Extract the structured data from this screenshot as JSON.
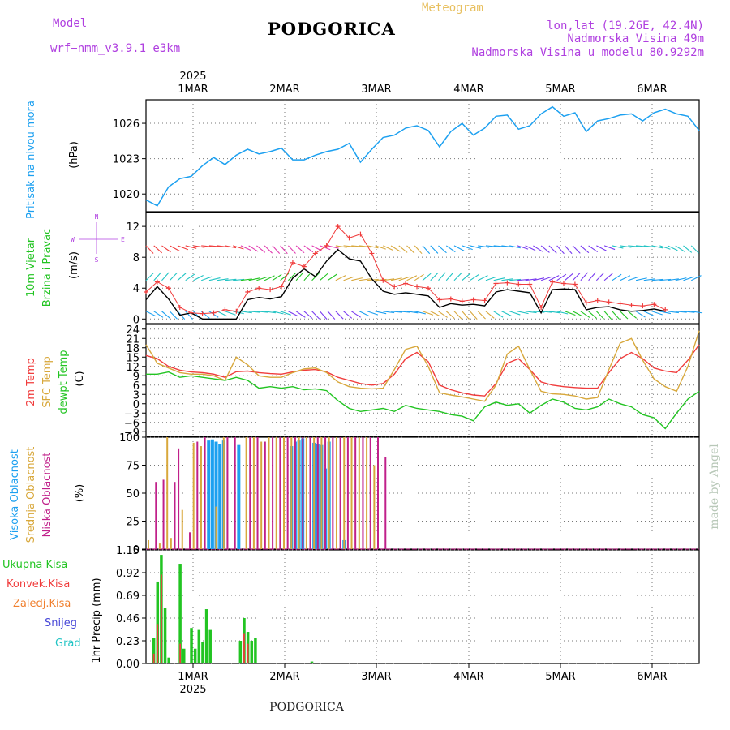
{
  "header": {
    "model_label": "Model",
    "model_name": "wrf−nmm_v3.9.1  e3km",
    "title": "PODGORICA",
    "subtitle": "Meteogram",
    "coords": "lon,lat (19.26E, 42.4N)",
    "elevation": "Nadmorska Visina 49m",
    "model_elevation": "Nadmorska Visina u modelu 80.9292m",
    "footer": "PODGORICA",
    "watermark": "made by Angel"
  },
  "colors": {
    "pressure": "#1ca0f0",
    "wind_speed": "#000000",
    "wind_gust": "#f03c3c",
    "temp2m": "#f03c3c",
    "sfc_temp": "#d8a83c",
    "dewpoint": "#22c422",
    "cloud_high": "#1ca0f0",
    "cloud_mid": "#d8a83c",
    "cloud_low": "#c0208a",
    "precip_total": "#22c422",
    "precip_conv": "#f03c3c"
  },
  "chart_data": [
    {
      "type": "line",
      "name": "pressure",
      "x_unit": "hours since 2025-02-28 12:00",
      "top_year": "2025",
      "bottom_year": "2025",
      "day_labels": [
        "1MAR",
        "2MAR",
        "3MAR",
        "4MAR",
        "5MAR",
        "6MAR"
      ],
      "ylabel": "Pritisak na nivou mora",
      "yunit": "(hPa)",
      "ylim": [
        1018.5,
        1028.0
      ],
      "yticks": [
        1020,
        1023,
        1026
      ],
      "series": [
        {
          "name": "MSLP",
          "color": "#1ca0f0",
          "x": [
            0,
            3,
            6,
            9,
            12,
            15,
            18,
            21,
            24,
            27,
            30,
            33,
            36,
            39,
            42,
            45,
            48,
            51,
            54,
            57,
            60,
            63,
            66,
            69,
            72,
            75,
            78,
            81,
            84,
            87,
            90,
            93,
            96,
            99,
            102,
            105,
            108,
            111,
            114,
            117,
            120,
            123,
            126,
            129,
            132,
            135,
            138,
            141,
            144,
            147
          ],
          "values": [
            1019.5,
            1019.0,
            1020.6,
            1021.3,
            1021.5,
            1022.4,
            1023.1,
            1022.5,
            1023.3,
            1023.8,
            1023.4,
            1023.6,
            1023.9,
            1022.9,
            1022.9,
            1023.3,
            1023.6,
            1023.8,
            1024.3,
            1022.7,
            1023.8,
            1024.8,
            1025.0,
            1025.6,
            1025.8,
            1025.4,
            1024.0,
            1025.3,
            1026.0,
            1025.0,
            1025.6,
            1026.6,
            1026.7,
            1025.5,
            1025.8,
            1026.8,
            1027.4,
            1026.6,
            1026.9,
            1025.3,
            1026.2,
            1026.4,
            1026.7,
            1026.8,
            1026.2,
            1026.9,
            1027.2,
            1026.8,
            1026.6,
            1025.4
          ]
        }
      ]
    },
    {
      "type": "line",
      "name": "wind",
      "ylabel": "10m Vjetar",
      "ylabel2": "Brzina i Pravac",
      "yunit": "(m/s)",
      "compass": [
        "N",
        "S",
        "W",
        "E"
      ],
      "ylim": [
        -0.6,
        13.8
      ],
      "yticks": [
        0,
        4,
        8,
        12
      ],
      "series": [
        {
          "name": "speed",
          "color": "#000000",
          "x": [
            0,
            3,
            6,
            9,
            12,
            15,
            18,
            21,
            24,
            27,
            30,
            33,
            36,
            39,
            42,
            45,
            48,
            51,
            54,
            57,
            60,
            63,
            66,
            69,
            72,
            75,
            78,
            81,
            84,
            87,
            90,
            93,
            96,
            99,
            102,
            105,
            108,
            111,
            114,
            117,
            120,
            123,
            126,
            129,
            132,
            135,
            138
          ],
          "values": [
            2.5,
            4.2,
            2.6,
            0.5,
            0.8,
            0,
            0,
            0,
            0,
            2.5,
            2.8,
            2.6,
            2.9,
            5.3,
            6.5,
            5.5,
            7.5,
            9.0,
            7.8,
            7.5,
            5.2,
            3.6,
            3.2,
            3.4,
            3.2,
            3.0,
            1.5,
            2.0,
            1.8,
            1.9,
            1.7,
            3.5,
            3.8,
            3.6,
            3.4,
            0.8,
            3.8,
            3.9,
            3.8,
            1.2,
            1.5,
            1.6,
            1.2,
            1.0,
            1.1,
            1.3,
            1.0
          ]
        },
        {
          "name": "gust",
          "color": "#f03c3c",
          "x": [
            0,
            3,
            6,
            9,
            12,
            15,
            18,
            21,
            24,
            27,
            30,
            33,
            36,
            39,
            42,
            45,
            48,
            51,
            54,
            57,
            60,
            63,
            66,
            69,
            72,
            75,
            78,
            81,
            84,
            87,
            90,
            93,
            96,
            99,
            102,
            105,
            108,
            111,
            114,
            117,
            120,
            123,
            126,
            129,
            132,
            135,
            138
          ],
          "values": [
            3.5,
            4.8,
            4.0,
            1.5,
            0.8,
            0.7,
            0.8,
            1.2,
            1.0,
            3.5,
            4.0,
            3.8,
            4.2,
            7.3,
            6.8,
            8.5,
            9.5,
            12.0,
            10.5,
            11.0,
            8.5,
            5.0,
            4.2,
            4.6,
            4.2,
            4.0,
            2.5,
            2.6,
            2.3,
            2.5,
            2.4,
            4.6,
            4.7,
            4.5,
            4.5,
            1.5,
            4.8,
            4.6,
            4.5,
            2.1,
            2.4,
            2.2,
            2.0,
            1.8,
            1.7,
            1.9,
            1.2
          ]
        }
      ],
      "barb_rows": [
        {
          "level": 1.0,
          "colors": [
            "#1ca0f0",
            "#22c4c4",
            "#7a3cf0",
            "#1ca0f0",
            "#d8a83c",
            "#22c4c4",
            "#22c422",
            "#1ca0f0"
          ]
        },
        {
          "level": 5.0,
          "colors": [
            "#22c4c4",
            "#22c422",
            "#d8a83c",
            "#22c4c4",
            "#7a3cf0",
            "#1ca0f0"
          ]
        },
        {
          "level": 9.5,
          "colors": [
            "#f03c3c",
            "#e03cb0",
            "#d8a83c",
            "#1ca0f0",
            "#7a3cf0",
            "#22c4c4"
          ]
        }
      ]
    },
    {
      "type": "line",
      "name": "temperature",
      "ylabels": [
        "2m Temp",
        "SFC Temp",
        "dewpt Temp"
      ],
      "yunit": "(C)",
      "ylim": [
        -10.5,
        25.5
      ],
      "yticks": [
        -9,
        -6,
        -3,
        0,
        3,
        6,
        9,
        12,
        15,
        18,
        21,
        24
      ],
      "series": [
        {
          "name": "2m Temp",
          "color": "#f03c3c",
          "x": [
            0,
            3,
            6,
            9,
            12,
            15,
            18,
            21,
            24,
            27,
            30,
            33,
            36,
            39,
            42,
            45,
            48,
            51,
            54,
            57,
            60,
            63,
            66,
            69,
            72,
            75,
            78,
            81,
            84,
            87,
            90,
            93,
            96,
            99,
            102,
            105,
            108,
            111,
            114,
            117,
            120,
            123,
            126,
            129,
            132,
            135,
            138,
            141,
            144,
            147
          ],
          "values": [
            15.5,
            14.5,
            12,
            10.8,
            10.2,
            10,
            9.5,
            8.5,
            10.3,
            10.5,
            10.0,
            9.7,
            9.5,
            10.2,
            10.8,
            11.0,
            10.2,
            8.5,
            7.5,
            6.5,
            6.0,
            6.5,
            9.5,
            14.5,
            16.5,
            13.5,
            6.0,
            4.5,
            3.5,
            2.8,
            2.5,
            6.5,
            13.0,
            14.5,
            11.0,
            7.0,
            6.0,
            5.5,
            5.2,
            5.0,
            5.0,
            10.0,
            14.5,
            16.5,
            14.5,
            11.5,
            10.5,
            10.0,
            14.0,
            19.0
          ]
        },
        {
          "name": "SFC Temp",
          "color": "#d8a83c",
          "x": [
            0,
            3,
            6,
            9,
            12,
            15,
            18,
            21,
            24,
            27,
            30,
            33,
            36,
            39,
            42,
            45,
            48,
            51,
            54,
            57,
            60,
            63,
            66,
            69,
            72,
            75,
            78,
            81,
            84,
            87,
            90,
            93,
            96,
            99,
            102,
            105,
            108,
            111,
            114,
            117,
            120,
            123,
            126,
            129,
            132,
            135,
            138,
            141,
            144,
            147
          ],
          "values": [
            19,
            13,
            11.5,
            10.0,
            9.5,
            9.5,
            9.0,
            7.5,
            15.0,
            12.5,
            9.0,
            8.5,
            8.5,
            10.0,
            11.2,
            11.5,
            10.0,
            7.0,
            5.5,
            5.0,
            4.8,
            5.0,
            11.0,
            17.5,
            18.5,
            12.0,
            3.5,
            2.8,
            2.2,
            1.5,
            0.8,
            6.0,
            16.0,
            18.5,
            11.0,
            4.0,
            3.2,
            3.0,
            2.5,
            1.5,
            2.0,
            11.0,
            19.5,
            21.0,
            14.0,
            8.0,
            5.5,
            4.0,
            12.0,
            23.5
          ]
        },
        {
          "name": "dewpt Temp",
          "color": "#22c422",
          "x": [
            0,
            3,
            6,
            9,
            12,
            15,
            18,
            21,
            24,
            27,
            30,
            33,
            36,
            39,
            42,
            45,
            48,
            51,
            54,
            57,
            60,
            63,
            66,
            69,
            72,
            75,
            78,
            81,
            84,
            87,
            90,
            93,
            96,
            99,
            102,
            105,
            108,
            111,
            114,
            117,
            120,
            123,
            126,
            129,
            132,
            135,
            138,
            141,
            144,
            147
          ],
          "values": [
            9.5,
            9.5,
            10.2,
            8.5,
            9.0,
            8.5,
            8.0,
            7.5,
            8.5,
            7.5,
            5.0,
            5.5,
            5.0,
            5.5,
            4.5,
            4.8,
            4.2,
            1.0,
            -1.5,
            -2.5,
            -2.0,
            -1.5,
            -2.5,
            -0.5,
            -1.5,
            -2.0,
            -2.5,
            -3.5,
            -4.0,
            -5.5,
            -1.0,
            0.5,
            -0.5,
            0,
            -3.0,
            -0.5,
            1.5,
            0.5,
            -1.5,
            -2.0,
            -1.0,
            1.5,
            0.0,
            -1.0,
            -3.5,
            -4.5,
            -8.0,
            -3.0,
            1.5,
            4.0
          ]
        }
      ]
    },
    {
      "type": "bar",
      "name": "cloud_cover",
      "ylabels": [
        "Visoka Oblacnost",
        "Srednja Oblacnost",
        "Niska Oblacnost"
      ],
      "yunit": "(%)",
      "ylim": [
        0,
        100
      ],
      "yticks": [
        0,
        25,
        50,
        75,
        100
      ],
      "series": [
        {
          "name": "Visoka",
          "color": "#1ca0f0",
          "x": [
            16,
            17,
            18,
            19,
            20,
            24,
            38,
            39,
            40,
            41,
            44,
            45,
            46,
            47,
            48,
            52
          ],
          "values": [
            97,
            98,
            96,
            94,
            97,
            93,
            92,
            96,
            97,
            99,
            95,
            94,
            93,
            72,
            96,
            8
          ]
        },
        {
          "name": "Srednja",
          "color": "#d8a83c",
          "x": [
            0,
            3,
            5,
            6,
            9,
            12,
            14,
            18,
            20,
            26,
            28,
            30,
            32,
            34,
            36,
            38,
            40,
            42,
            44,
            46,
            48,
            50,
            52,
            54,
            56,
            58,
            60
          ],
          "values": [
            8,
            5,
            100,
            10,
            35,
            95,
            92,
            38,
            100,
            100,
            100,
            96,
            100,
            100,
            100,
            100,
            100,
            100,
            100,
            100,
            100,
            100,
            100,
            100,
            100,
            100,
            75
          ]
        },
        {
          "name": "Niska",
          "color": "#c0208a",
          "x": [
            2,
            4,
            7,
            8,
            11,
            13,
            15,
            21,
            23,
            27,
            29,
            31,
            33,
            35,
            37,
            39,
            41,
            43,
            45,
            47,
            49,
            51,
            53,
            55,
            57,
            59,
            61,
            63
          ],
          "values": [
            60,
            62,
            60,
            90,
            15,
            96,
            100,
            100,
            100,
            100,
            100,
            96,
            100,
            100,
            100,
            100,
            100,
            100,
            100,
            100,
            100,
            100,
            100,
            100,
            100,
            100,
            100,
            82
          ]
        }
      ]
    },
    {
      "type": "bar",
      "name": "precipitation",
      "legend": [
        "Ukupna Kisa",
        "Konvek.Kisa",
        "Zaledj.Kisa",
        "Snijeg",
        "Grad"
      ],
      "legend_colors": [
        "#22c422",
        "#f03c3c",
        "#f08030",
        "#4a4ad8",
        "#22c4c4"
      ],
      "ylabel": "1hr Precip (mm)",
      "ylim": [
        0,
        1.15
      ],
      "yticks": [
        0,
        0.23,
        0.46,
        0.69,
        0.92,
        1.15
      ],
      "series": [
        {
          "name": "Ukupna Kisa",
          "color": "#22c422",
          "x": [
            1,
            2,
            3,
            4,
            5,
            6,
            8,
            9,
            11,
            12,
            13,
            14,
            15,
            16,
            17,
            18,
            19,
            20,
            24,
            25,
            26,
            27,
            28,
            43
          ],
          "values": [
            0.26,
            0.83,
            1.1,
            0.56,
            0.06,
            0.0,
            1.01,
            0.15,
            0.36,
            0.15,
            0.34,
            0.22,
            0.55,
            0.34,
            0.0,
            0.0,
            0.0,
            0.0,
            0.23,
            0.46,
            0.32,
            0.23,
            0.26,
            0.02
          ]
        },
        {
          "name": "Konvek.Kisa",
          "color": "#f03c3c",
          "x": [
            1,
            2,
            3,
            8,
            25,
            26
          ],
          "values": [
            0.1,
            0.4,
            0.9,
            0.2,
            0.3,
            0.2
          ]
        }
      ]
    }
  ]
}
